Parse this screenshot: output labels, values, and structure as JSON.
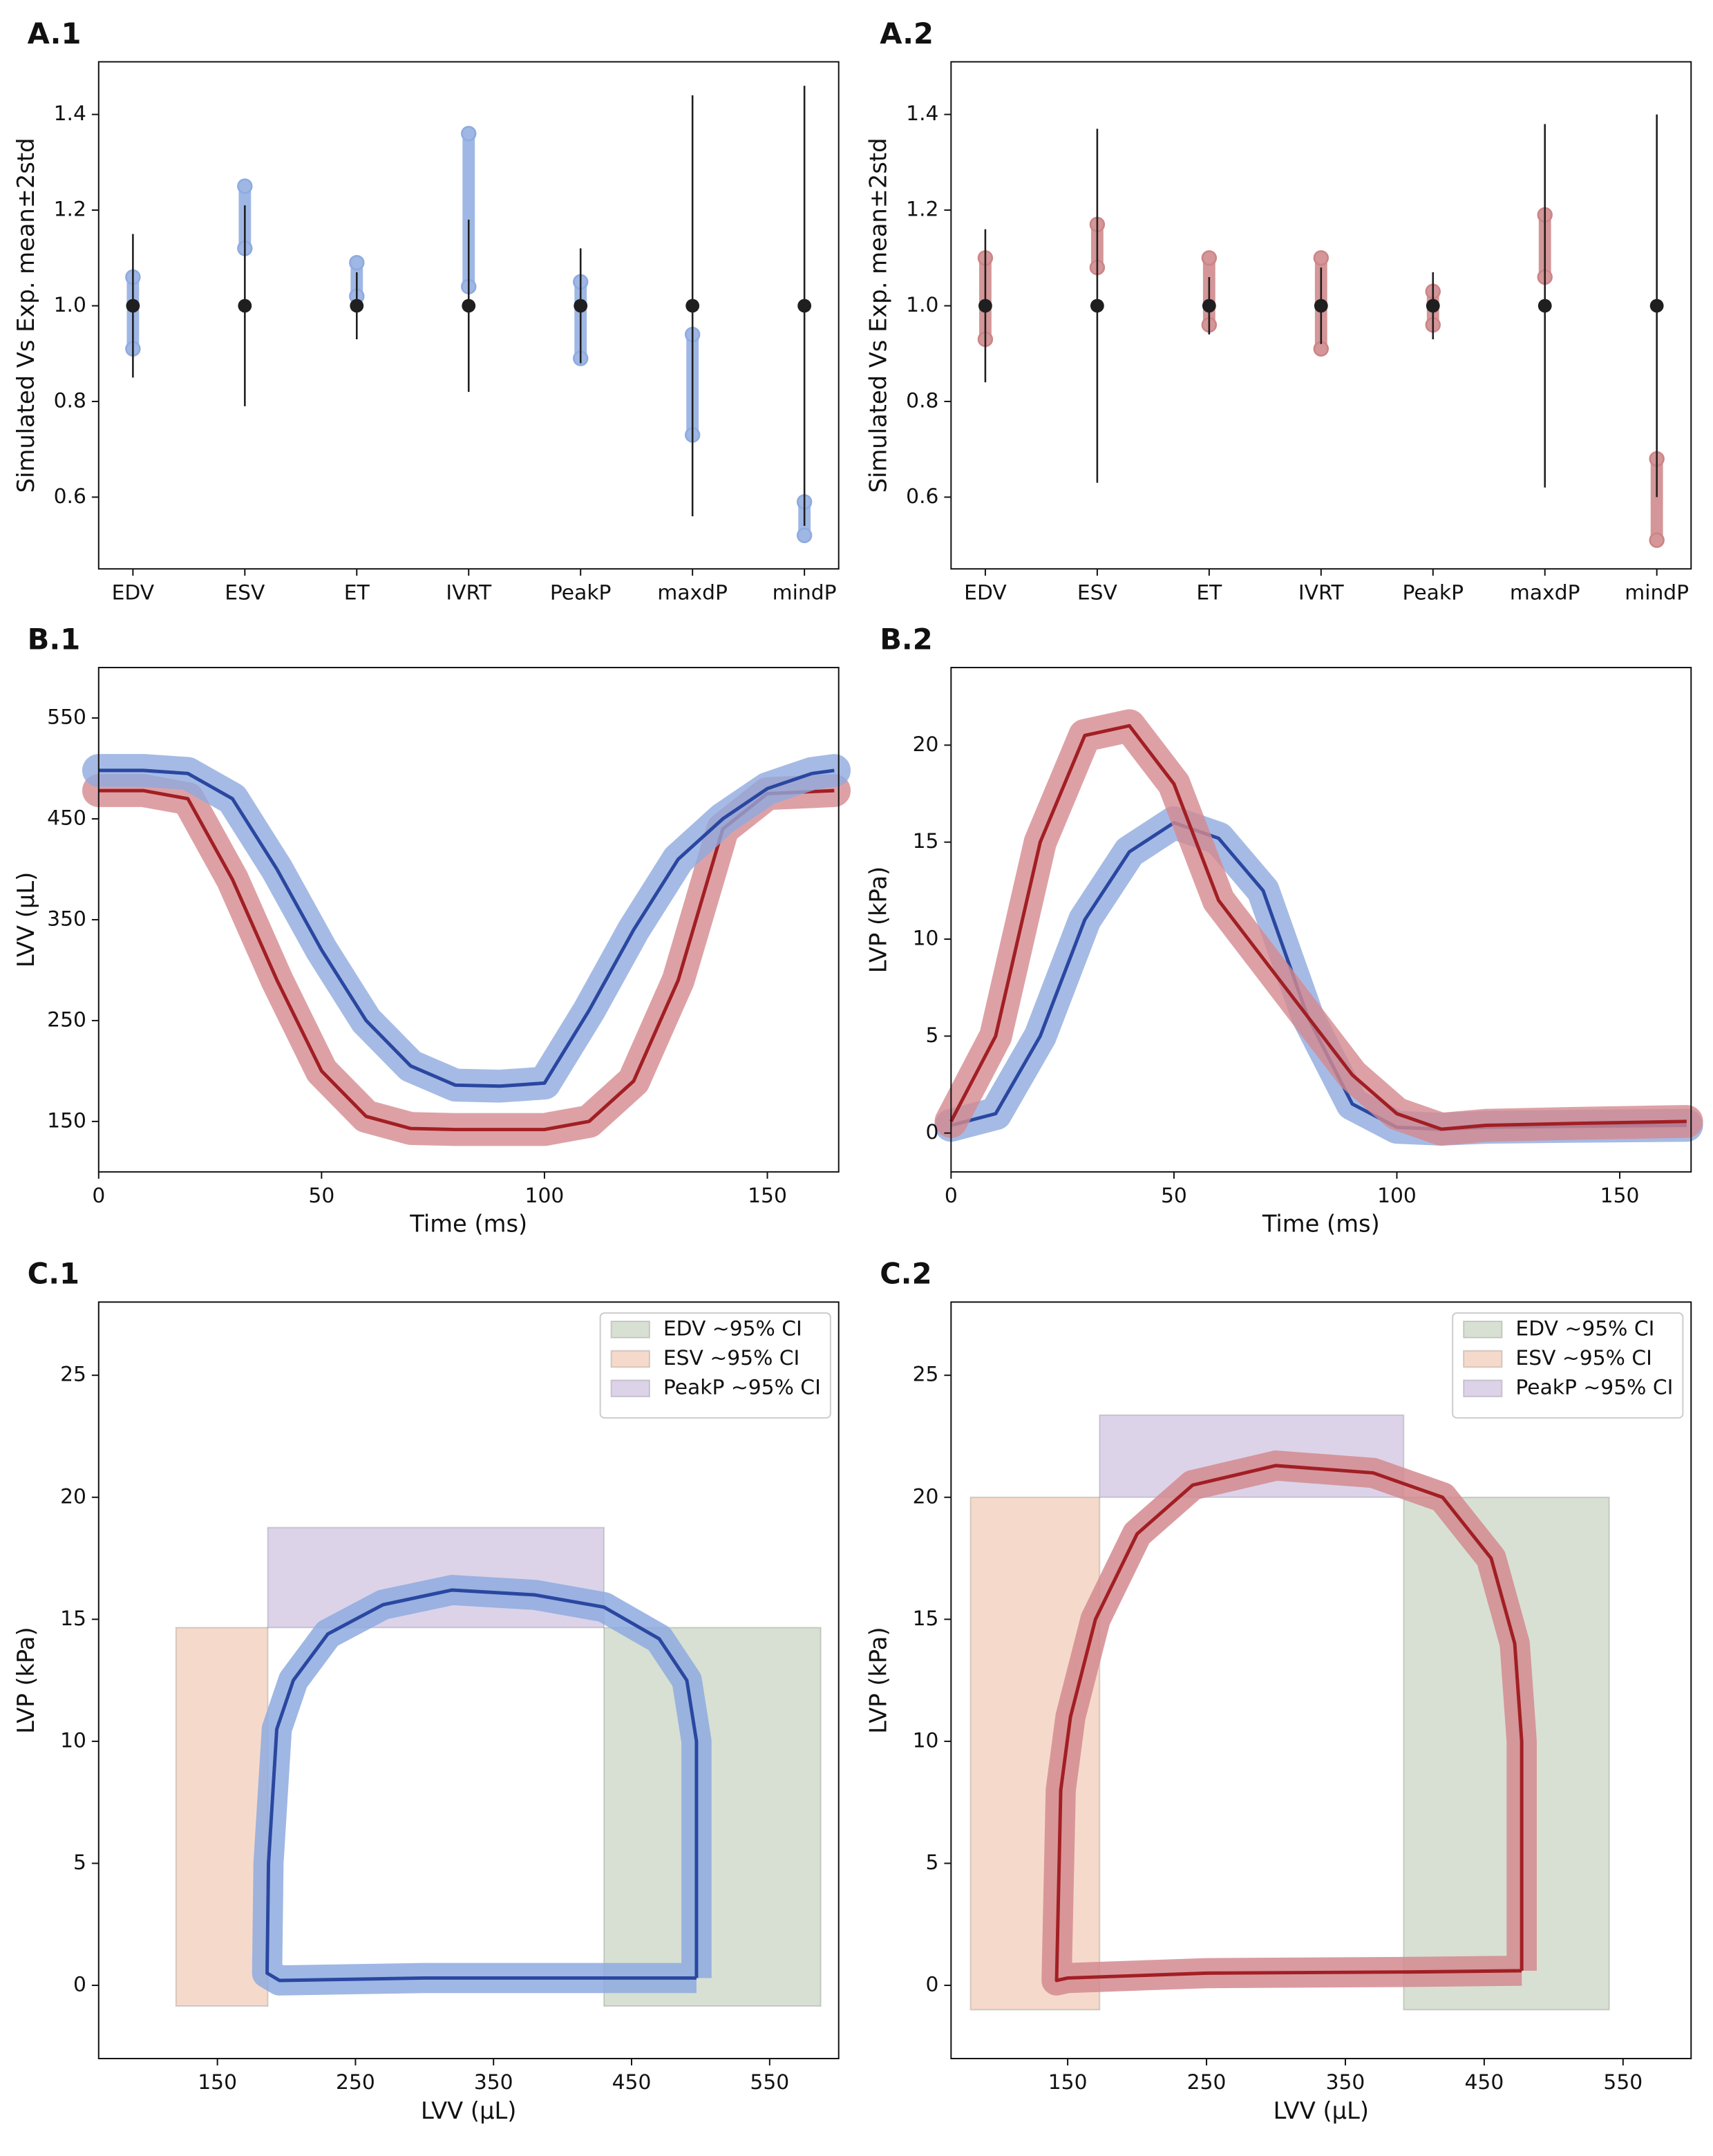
{
  "chart_data": [
    {
      "type": "errorbar",
      "panel": "A.1",
      "ylabel": "Simulated Vs Exp. mean±2std",
      "categories": [
        "EDV",
        "ESV",
        "ET",
        "IVRT",
        "PeakP",
        "maxdP",
        "mindP"
      ],
      "exp_mean": [
        1,
        1,
        1,
        1,
        1,
        1,
        1
      ],
      "exp_error": [
        0.15,
        0.21,
        0.07,
        0.18,
        0.12,
        0.44,
        0.46
      ],
      "exp_color": "#1f1f1f",
      "sim_min": [
        0.91,
        1.12,
        1.02,
        1.04,
        0.89,
        0.73,
        0.52
      ],
      "sim_max": [
        1.06,
        1.25,
        1.09,
        1.36,
        1.05,
        0.94,
        0.59
      ],
      "sim_color": "#8eaadf",
      "ylim": [
        0.45,
        1.51
      ],
      "yticks": [
        0.6,
        0.8,
        {
          "value": 1,
          "label": "1.0"
        },
        1.2,
        1.4
      ]
    },
    {
      "type": "errorbar",
      "panel": "A.2",
      "ylabel": "Simulated Vs Exp. mean±2std",
      "categories": [
        "EDV",
        "ESV",
        "ET",
        "IVRT",
        "PeakP",
        "maxdP",
        "mindP"
      ],
      "exp_mean": [
        1,
        1,
        1,
        1,
        1,
        1,
        1
      ],
      "exp_error": [
        0.16,
        0.37,
        0.06,
        0.08,
        0.07,
        0.38,
        0.4
      ],
      "exp_color": "#1f1f1f",
      "sim_min": [
        0.93,
        1.08,
        0.96,
        0.91,
        0.96,
        1.06,
        0.51
      ],
      "sim_max": [
        1.1,
        1.17,
        1.1,
        1.1,
        1.03,
        1.19,
        0.68
      ],
      "sim_color": "#cc8486",
      "ylim": [
        0.45,
        1.51
      ],
      "yticks": [
        0.6,
        0.8,
        {
          "value": 1,
          "label": "1.0"
        },
        1.2,
        1.4
      ]
    },
    {
      "type": "line",
      "panel": "B.1",
      "xlabel": "Time (ms)",
      "ylabel": "LVV (µL)",
      "x": [
        0,
        10,
        20,
        30,
        40,
        50,
        60,
        70,
        80,
        90,
        100,
        110,
        120,
        130,
        140,
        150,
        160,
        165
      ],
      "series": [
        {
          "color": "#a11f24",
          "band_color": "#d48a8f",
          "values": [
            478,
            478,
            470,
            390,
            290,
            200,
            155,
            143,
            142,
            142,
            142,
            150,
            190,
            290,
            440,
            475,
            477,
            478
          ]
        },
        {
          "color": "#2a47a0",
          "band_color": "#8eaadf",
          "values": [
            498,
            498,
            495,
            470,
            400,
            320,
            250,
            205,
            186,
            185,
            188,
            260,
            340,
            410,
            450,
            480,
            495,
            498
          ]
        }
      ],
      "xlim": [
        0,
        166
      ],
      "ylim": [
        100,
        600
      ],
      "xticks": [
        0,
        50,
        100,
        150
      ],
      "yticks": [
        150,
        250,
        350,
        450,
        550
      ]
    },
    {
      "type": "line",
      "panel": "B.2",
      "xlabel": "Time (ms)",
      "ylabel": "LVP (kPa)",
      "x": [
        0,
        10,
        20,
        30,
        40,
        50,
        60,
        70,
        80,
        90,
        100,
        110,
        120,
        140,
        165
      ],
      "series": [
        {
          "color": "#2a47a0",
          "band_color": "#8eaadf",
          "values": [
            0.4,
            1,
            5,
            11,
            14.5,
            16,
            15.2,
            12.5,
            6,
            1.5,
            0.3,
            0.2,
            0.3,
            0.35,
            0.4
          ]
        },
        {
          "color": "#a11f24",
          "band_color": "#d48a8f",
          "values": [
            0.6,
            5,
            15,
            20.5,
            21,
            18,
            12,
            9,
            6,
            3,
            1,
            0.2,
            0.4,
            0.5,
            0.6
          ]
        }
      ],
      "xlim": [
        0,
        166
      ],
      "ylim": [
        -2,
        24
      ],
      "xticks": [
        0,
        50,
        100,
        150
      ],
      "yticks": [
        0,
        5,
        10,
        15,
        20
      ]
    },
    {
      "type": "loop",
      "panel": "C.1",
      "xlabel": "LVV (µL)",
      "ylabel": "LVP (kPa)",
      "legend": "upper right",
      "regions": [
        {
          "name": "EDV ~95% CI",
          "color": "#d8e0d3",
          "x": [
            430,
            587
          ],
          "y": [
            -0.85,
            14.66
          ]
        },
        {
          "name": "ESV ~95% CI",
          "color": "#f5dacb",
          "x": [
            120,
            186.5
          ],
          "y": [
            -0.85,
            14.66
          ]
        },
        {
          "name": "PeakP ~95% CI",
          "color": "#dcd3e9",
          "x": [
            186.5,
            430
          ],
          "y": [
            14.66,
            18.76
          ]
        }
      ],
      "series": [
        {
          "color": "#2a47a0",
          "band_color": "#8eaadf",
          "x": [
            497,
            497,
            490,
            470,
            430,
            380,
            320,
            270,
            230,
            205,
            193,
            187,
            186,
            195,
            300,
            400,
            497
          ],
          "values": [
            0.3,
            10,
            12.5,
            14.2,
            15.5,
            16,
            16.2,
            15.6,
            14.4,
            12.5,
            10.5,
            5,
            0.5,
            0.2,
            0.3,
            0.3,
            0.3
          ]
        }
      ],
      "xlim": [
        64,
        600
      ],
      "ylim": [
        -3,
        28
      ],
      "xticks": [
        150,
        250,
        350,
        450,
        550
      ],
      "yticks": [
        0,
        5,
        10,
        15,
        20,
        25
      ]
    },
    {
      "type": "loop",
      "panel": "C.2",
      "xlabel": "LVV (µL)",
      "ylabel": "LVP (kPa)",
      "legend": "upper right",
      "regions": [
        {
          "name": "EDV ~95% CI",
          "color": "#d8e0d3",
          "x": [
            392,
            540
          ],
          "y": [
            -1,
            20
          ]
        },
        {
          "name": "ESV ~95% CI",
          "color": "#f5dacb",
          "x": [
            80,
            173
          ],
          "y": [
            -1,
            20
          ]
        },
        {
          "name": "PeakP ~95% CI",
          "color": "#dcd3e9",
          "x": [
            173,
            392
          ],
          "y": [
            20,
            23.37
          ]
        }
      ],
      "series": [
        {
          "color": "#a11f24",
          "band_color": "#d48a8f",
          "x": [
            477,
            477,
            472,
            455,
            420,
            370,
            300,
            240,
            200,
            170,
            152,
            145,
            142,
            150,
            250,
            400,
            477
          ],
          "values": [
            0.6,
            10,
            14,
            17.5,
            20,
            21,
            21.3,
            20.5,
            18.5,
            15,
            11,
            8,
            0.2,
            0.3,
            0.5,
            0.55,
            0.6
          ]
        }
      ],
      "xlim": [
        66,
        599
      ],
      "ylim": [
        -3,
        28
      ],
      "xticks": [
        150,
        250,
        350,
        450,
        550
      ],
      "yticks": [
        0,
        5,
        10,
        15,
        20,
        25
      ]
    }
  ]
}
